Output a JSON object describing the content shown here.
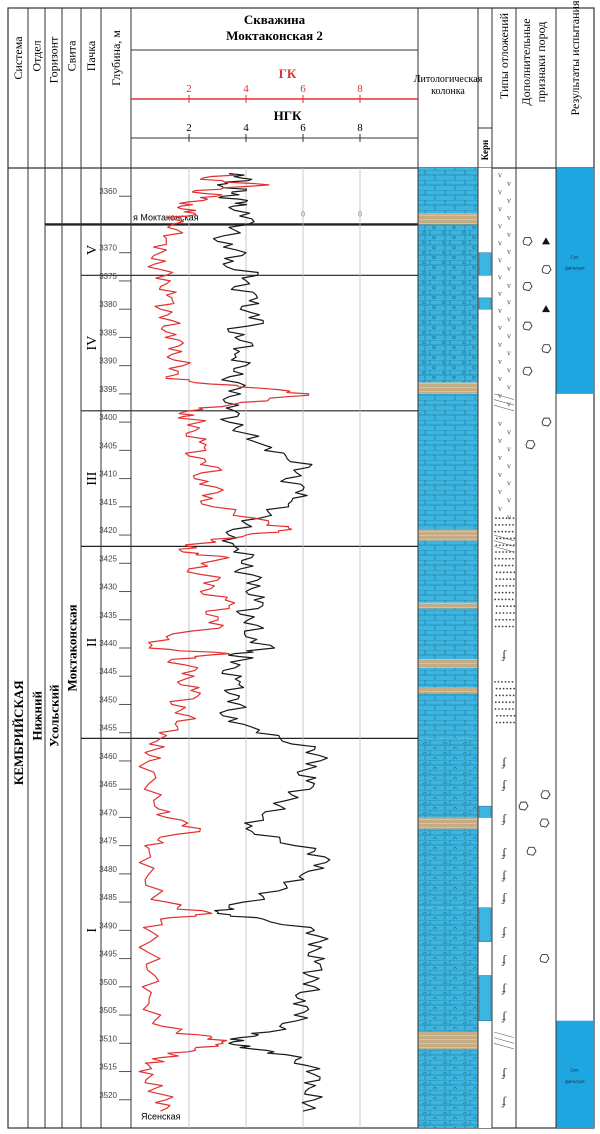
{
  "headers": {
    "system": "Система",
    "series": "Отдел",
    "horizon": "Горизонт",
    "formation": "Свита",
    "pack": "Пачка",
    "depth": "Глубина, м",
    "well_title_1": "Скважина",
    "well_title_2": "Моктаконская 2",
    "gk": "ГК",
    "ngk": "НГК",
    "litho_1": "Литологическая",
    "litho_2": "колонка",
    "kern": "Керн",
    "deposit_types": "Типы отложений",
    "extra_1": "Дополнительные",
    "extra_2": "признаки пород",
    "results": "Результаты испытания"
  },
  "strat": {
    "system": "КЕМБРИЙСКАЯ",
    "series": "Нижний",
    "horizon": "Усольский",
    "formation": "Моктаконская"
  },
  "packs": [
    "V",
    "IV",
    "III",
    "II",
    "I"
  ],
  "gk_ticks": [
    "2",
    "4",
    "6",
    "8"
  ],
  "ngk_ticks": [
    "2",
    "4",
    "6",
    "8"
  ],
  "depth_ticks": [
    "3360",
    "3370",
    "3375",
    "3380",
    "3385",
    "3390",
    "3395",
    "3400",
    "3405",
    "3410",
    "3415",
    "3420",
    "3425",
    "3430",
    "3435",
    "3440",
    "3445",
    "3450",
    "3455",
    "3460",
    "3465",
    "3470",
    "3475",
    "3480",
    "3485",
    "3490",
    "3495",
    "3500",
    "3505",
    "3510",
    "3515",
    "3520"
  ],
  "boundary_labels": {
    "top": "я Моктаконская",
    "bottom": "Ясенская"
  },
  "grid_zero_labels": [
    "0",
    "0"
  ],
  "test_results": {
    "upper": "Сух.\nфильтрат",
    "lower": "Сух.\nфильтрат"
  },
  "colors": {
    "gk_curve": "#e23030",
    "ngk_curve": "#1a1a1a",
    "dolomite": "#3cb6e0",
    "salt_band": "#d9c19a",
    "result_fill": "#1ea6e0"
  },
  "chart_data": [
    {
      "type": "line",
      "title": "ГК",
      "x_unit_ticks": [
        2,
        4,
        6,
        8
      ],
      "y_label": "Глубина, м",
      "ylim": [
        3355,
        3525
      ],
      "series": [
        {
          "name": "ГК",
          "points": [
            [
              3356,
              3.6
            ],
            [
              3357,
              2.4
            ],
            [
              3358,
              4.8
            ],
            [
              3359,
              2.2
            ],
            [
              3360,
              3.0
            ],
            [
              3361,
              2.0
            ],
            [
              3362,
              1.6
            ],
            [
              3363,
              2.2
            ],
            [
              3364,
              1.4
            ],
            [
              3366,
              1.6
            ],
            [
              3368,
              1.2
            ],
            [
              3370,
              1.0
            ],
            [
              3372,
              0.8
            ],
            [
              3374,
              1.2
            ],
            [
              3376,
              1.0
            ],
            [
              3378,
              1.4
            ],
            [
              3380,
              1.0
            ],
            [
              3382,
              1.4
            ],
            [
              3384,
              1.2
            ],
            [
              3386,
              1.8
            ],
            [
              3388,
              1.4
            ],
            [
              3390,
              1.8
            ],
            [
              3392,
              1.2
            ],
            [
              3393,
              2.2
            ],
            [
              3394,
              4.5
            ],
            [
              3395,
              6.2
            ],
            [
              3396,
              4.8
            ],
            [
              3397,
              3.4
            ],
            [
              3398,
              2.0
            ],
            [
              3399,
              1.8
            ],
            [
              3400,
              2.4
            ],
            [
              3402,
              1.9
            ],
            [
              3404,
              2.6
            ],
            [
              3406,
              2.0
            ],
            [
              3408,
              3.0
            ],
            [
              3410,
              2.2
            ],
            [
              3412,
              3.2
            ],
            [
              3414,
              2.4
            ],
            [
              3416,
              3.6
            ],
            [
              3418,
              4.8
            ],
            [
              3419,
              5.6
            ],
            [
              3420,
              4.0
            ],
            [
              3421,
              2.8
            ],
            [
              3422,
              2.0
            ],
            [
              3423,
              1.8
            ],
            [
              3424,
              3.4
            ],
            [
              3426,
              2.0
            ],
            [
              3428,
              3.0
            ],
            [
              3430,
              2.4
            ],
            [
              3432,
              3.6
            ],
            [
              3434,
              2.6
            ],
            [
              3436,
              3.2
            ],
            [
              3438,
              1.2
            ],
            [
              3440,
              0.6
            ],
            [
              3441,
              3.4
            ],
            [
              3442,
              1.4
            ],
            [
              3444,
              2.2
            ],
            [
              3446,
              1.6
            ],
            [
              3448,
              2.4
            ],
            [
              3450,
              1.4
            ],
            [
              3452,
              2.0
            ],
            [
              3454,
              1.6
            ],
            [
              3456,
              1.0
            ],
            [
              3458,
              0.8
            ],
            [
              3460,
              0.6
            ],
            [
              3464,
              0.6
            ],
            [
              3468,
              0.8
            ],
            [
              3470,
              1.2
            ],
            [
              3472,
              2.4
            ],
            [
              3474,
              0.9
            ],
            [
              3476,
              0.6
            ],
            [
              3480,
              0.6
            ],
            [
              3484,
              0.8
            ],
            [
              3486,
              1.6
            ],
            [
              3487,
              2.8
            ],
            [
              3488,
              1.0
            ],
            [
              3490,
              0.6
            ],
            [
              3494,
              0.6
            ],
            [
              3498,
              0.8
            ],
            [
              3502,
              0.6
            ],
            [
              3506,
              0.8
            ],
            [
              3508,
              1.6
            ],
            [
              3509,
              2.8
            ],
            [
              3510,
              3.2
            ],
            [
              3511,
              2.2
            ],
            [
              3512,
              1.4
            ],
            [
              3513,
              0.9
            ],
            [
              3514,
              0.6
            ],
            [
              3516,
              0.6
            ],
            [
              3518,
              0.8
            ],
            [
              3520,
              1.2
            ],
            [
              3522,
              1.0
            ]
          ]
        }
      ]
    },
    {
      "type": "line",
      "title": "НГК",
      "x_unit_ticks": [
        2,
        4,
        6,
        8
      ],
      "y_label": "Глубина, м",
      "ylim": [
        3355,
        3525
      ],
      "series": [
        {
          "name": "НГК",
          "points": [
            [
              3356,
              3.4
            ],
            [
              3357,
              4.2
            ],
            [
              3358,
              3.0
            ],
            [
              3359,
              4.0
            ],
            [
              3360,
              3.2
            ],
            [
              3361,
              4.0
            ],
            [
              3362,
              3.4
            ],
            [
              3364,
              4.2
            ],
            [
              3366,
              3.6
            ],
            [
              3368,
              3.0
            ],
            [
              3370,
              4.0
            ],
            [
              3372,
              3.2
            ],
            [
              3374,
              4.4
            ],
            [
              3376,
              3.6
            ],
            [
              3378,
              4.4
            ],
            [
              3380,
              3.8
            ],
            [
              3382,
              4.6
            ],
            [
              3384,
              3.4
            ],
            [
              3386,
              4.2
            ],
            [
              3388,
              3.6
            ],
            [
              3390,
              4.0
            ],
            [
              3392,
              3.4
            ],
            [
              3394,
              3.8
            ],
            [
              3396,
              3.2
            ],
            [
              3398,
              3.6
            ],
            [
              3400,
              3.4
            ],
            [
              3402,
              4.0
            ],
            [
              3404,
              4.6
            ],
            [
              3406,
              5.4
            ],
            [
              3408,
              6.2
            ],
            [
              3410,
              5.4
            ],
            [
              3412,
              6.0
            ],
            [
              3414,
              5.6
            ],
            [
              3416,
              4.8
            ],
            [
              3418,
              4.0
            ],
            [
              3420,
              3.4
            ],
            [
              3422,
              3.6
            ],
            [
              3424,
              4.2
            ],
            [
              3426,
              3.8
            ],
            [
              3428,
              4.4
            ],
            [
              3430,
              4.0
            ],
            [
              3432,
              4.6
            ],
            [
              3434,
              3.8
            ],
            [
              3436,
              4.4
            ],
            [
              3438,
              4.0
            ],
            [
              3440,
              5.0
            ],
            [
              3441,
              3.6
            ],
            [
              3442,
              4.0
            ],
            [
              3444,
              3.2
            ],
            [
              3446,
              3.8
            ],
            [
              3448,
              3.4
            ],
            [
              3450,
              3.8
            ],
            [
              3452,
              3.2
            ],
            [
              3454,
              4.2
            ],
            [
              3456,
              5.2
            ],
            [
              3458,
              6.4
            ],
            [
              3460,
              6.6
            ],
            [
              3462,
              5.8
            ],
            [
              3464,
              6.4
            ],
            [
              3466,
              5.6
            ],
            [
              3468,
              5.2
            ],
            [
              3470,
              4.6
            ],
            [
              3472,
              4.0
            ],
            [
              3474,
              5.2
            ],
            [
              3476,
              6.4
            ],
            [
              3478,
              6.8
            ],
            [
              3480,
              6.0
            ],
            [
              3482,
              5.4
            ],
            [
              3484,
              4.6
            ],
            [
              3486,
              3.4
            ],
            [
              3487,
              3.0
            ],
            [
              3488,
              4.6
            ],
            [
              3490,
              6.4
            ],
            [
              3492,
              6.6
            ],
            [
              3494,
              6.2
            ],
            [
              3496,
              6.6
            ],
            [
              3498,
              6.2
            ],
            [
              3500,
              6.4
            ],
            [
              3502,
              5.8
            ],
            [
              3504,
              6.2
            ],
            [
              3506,
              5.8
            ],
            [
              3508,
              4.8
            ],
            [
              3509,
              3.8
            ],
            [
              3510,
              3.4
            ],
            [
              3511,
              4.2
            ],
            [
              3512,
              5.4
            ],
            [
              3514,
              6.2
            ],
            [
              3516,
              6.6
            ],
            [
              3518,
              6.2
            ],
            [
              3520,
              6.4
            ],
            [
              3522,
              6.0
            ]
          ]
        }
      ]
    }
  ]
}
